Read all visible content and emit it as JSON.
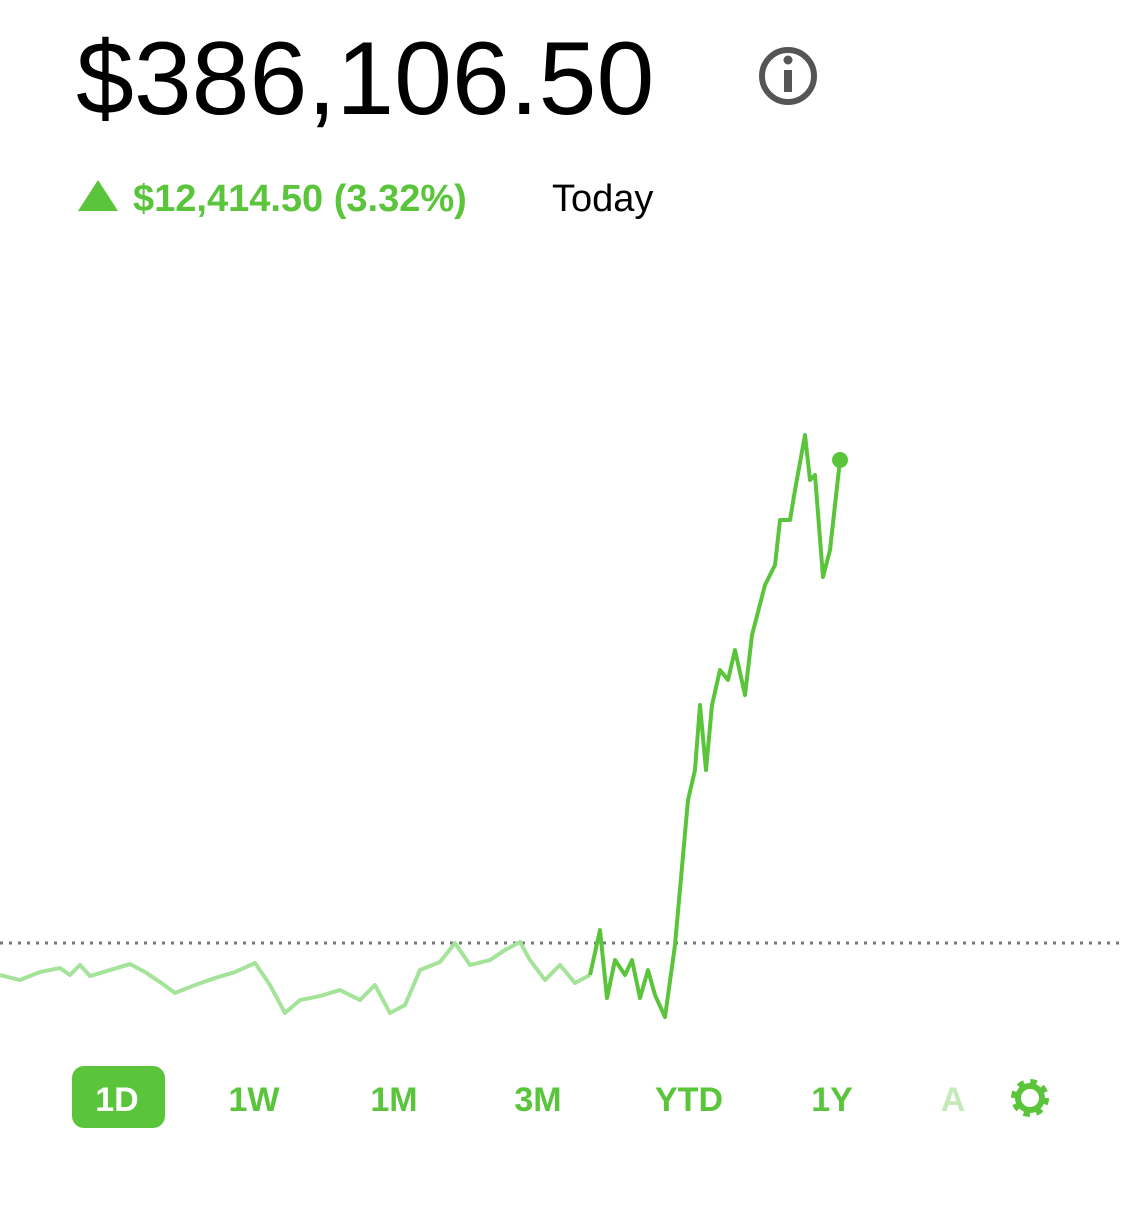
{
  "header": {
    "balance": "$386,106.50",
    "change": "$12,414.50 (3.32%)",
    "period": "Today"
  },
  "chart_data": {
    "type": "line",
    "xlim": [
      0,
      1125
    ],
    "ylim": [
      371200,
      391760
    ],
    "reference_line": 373692,
    "series": [
      {
        "color": "#a5e39b",
        "x": [
          0,
          20,
          40,
          60,
          70,
          80,
          90,
          110,
          130,
          145,
          160,
          175,
          195,
          215,
          235,
          255,
          270,
          285,
          300,
          320,
          340,
          360,
          375,
          390,
          405,
          420,
          440,
          455,
          470,
          490,
          505,
          520,
          530,
          545,
          560,
          575,
          590
        ],
        "values": [
          372870,
          372741,
          372947,
          373049,
          372870,
          373127,
          372844,
          372998,
          373152,
          372947,
          372690,
          372407,
          372613,
          372792,
          372947,
          373178,
          372613,
          371893,
          372227,
          372330,
          372484,
          372227,
          372613,
          371893,
          372099,
          372998,
          373204,
          373692,
          373127,
          373255,
          373512,
          373718,
          373255,
          372741,
          373127,
          372664,
          372870
        ]
      },
      {
        "color": "#5ac53b",
        "x": [
          590,
          600,
          607,
          615,
          625,
          632,
          640,
          648,
          655,
          665,
          675,
          688,
          695,
          700,
          706,
          712,
          720,
          728,
          735,
          745,
          752,
          765,
          775,
          780,
          790,
          795,
          805,
          810,
          815,
          823,
          830,
          840
        ],
        "values": [
          372870,
          374026,
          372278,
          373255,
          372870,
          373255,
          372278,
          372998,
          372356,
          371790,
          373641,
          377367,
          378138,
          379809,
          378138,
          379809,
          380708,
          380451,
          381222,
          380066,
          381608,
          382893,
          383407,
          384563,
          384563,
          385334,
          386748,
          385591,
          385720,
          383098,
          383792,
          386106.5
        ]
      }
    ]
  },
  "tabs": [
    "1D",
    "1W",
    "1M",
    "3M",
    "YTD",
    "1Y",
    "A"
  ],
  "active_tab": 0
}
